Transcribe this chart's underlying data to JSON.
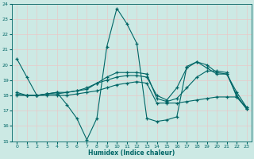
{
  "xlabel": "Humidex (Indice chaleur)",
  "xlim": [
    -0.5,
    23.5
  ],
  "ylim": [
    15,
    24
  ],
  "yticks": [
    15,
    16,
    17,
    18,
    19,
    20,
    21,
    22,
    23,
    24
  ],
  "xticks": [
    0,
    1,
    2,
    3,
    4,
    5,
    6,
    7,
    8,
    9,
    10,
    11,
    12,
    13,
    14,
    15,
    16,
    17,
    18,
    19,
    20,
    21,
    22,
    23
  ],
  "bg_color": "#cce9e4",
  "line_color": "#006666",
  "grid_color": "#b0d8d0",
  "lines": [
    {
      "x": [
        0,
        1,
        2,
        3,
        4,
        5,
        6,
        7,
        8,
        9,
        10,
        11,
        12,
        13,
        14,
        15,
        16,
        17,
        18,
        19,
        20,
        21,
        22,
        23
      ],
      "y": [
        20.4,
        19.2,
        18.0,
        18.1,
        18.2,
        17.4,
        16.5,
        15.1,
        16.5,
        21.2,
        23.7,
        22.7,
        21.4,
        16.5,
        16.3,
        16.4,
        16.6,
        19.9,
        20.2,
        19.8,
        19.4,
        19.4,
        18.0,
        17.1
      ]
    },
    {
      "x": [
        0,
        1,
        2,
        3,
        4,
        5,
        6,
        7,
        8,
        9,
        10,
        11,
        12,
        13,
        14,
        15,
        16,
        17,
        18,
        19,
        20,
        21,
        22,
        23
      ],
      "y": [
        18.0,
        18.0,
        18.0,
        18.0,
        18.0,
        18.0,
        18.1,
        18.2,
        18.3,
        18.5,
        18.7,
        18.8,
        18.9,
        18.8,
        17.5,
        17.5,
        17.5,
        17.6,
        17.7,
        17.8,
        17.9,
        17.9,
        17.9,
        17.2
      ]
    },
    {
      "x": [
        0,
        1,
        2,
        3,
        4,
        5,
        6,
        7,
        8,
        9,
        10,
        11,
        12,
        13,
        14,
        15,
        16,
        17,
        18,
        19,
        20,
        21,
        22,
        23
      ],
      "y": [
        18.1,
        18.0,
        18.0,
        18.1,
        18.1,
        18.2,
        18.3,
        18.5,
        18.8,
        19.2,
        19.5,
        19.5,
        19.5,
        19.4,
        17.8,
        17.6,
        17.8,
        18.5,
        19.2,
        19.6,
        19.6,
        19.5,
        17.9,
        17.1
      ]
    },
    {
      "x": [
        0,
        1,
        2,
        3,
        4,
        5,
        6,
        7,
        8,
        9,
        10,
        11,
        12,
        13,
        14,
        15,
        16,
        17,
        18,
        19,
        20,
        21,
        22,
        23
      ],
      "y": [
        18.2,
        18.0,
        18.0,
        18.1,
        18.2,
        18.2,
        18.3,
        18.4,
        18.8,
        19.0,
        19.2,
        19.3,
        19.3,
        19.2,
        18.0,
        17.7,
        18.5,
        19.8,
        20.2,
        20.0,
        19.5,
        19.4,
        18.2,
        17.2
      ]
    }
  ]
}
